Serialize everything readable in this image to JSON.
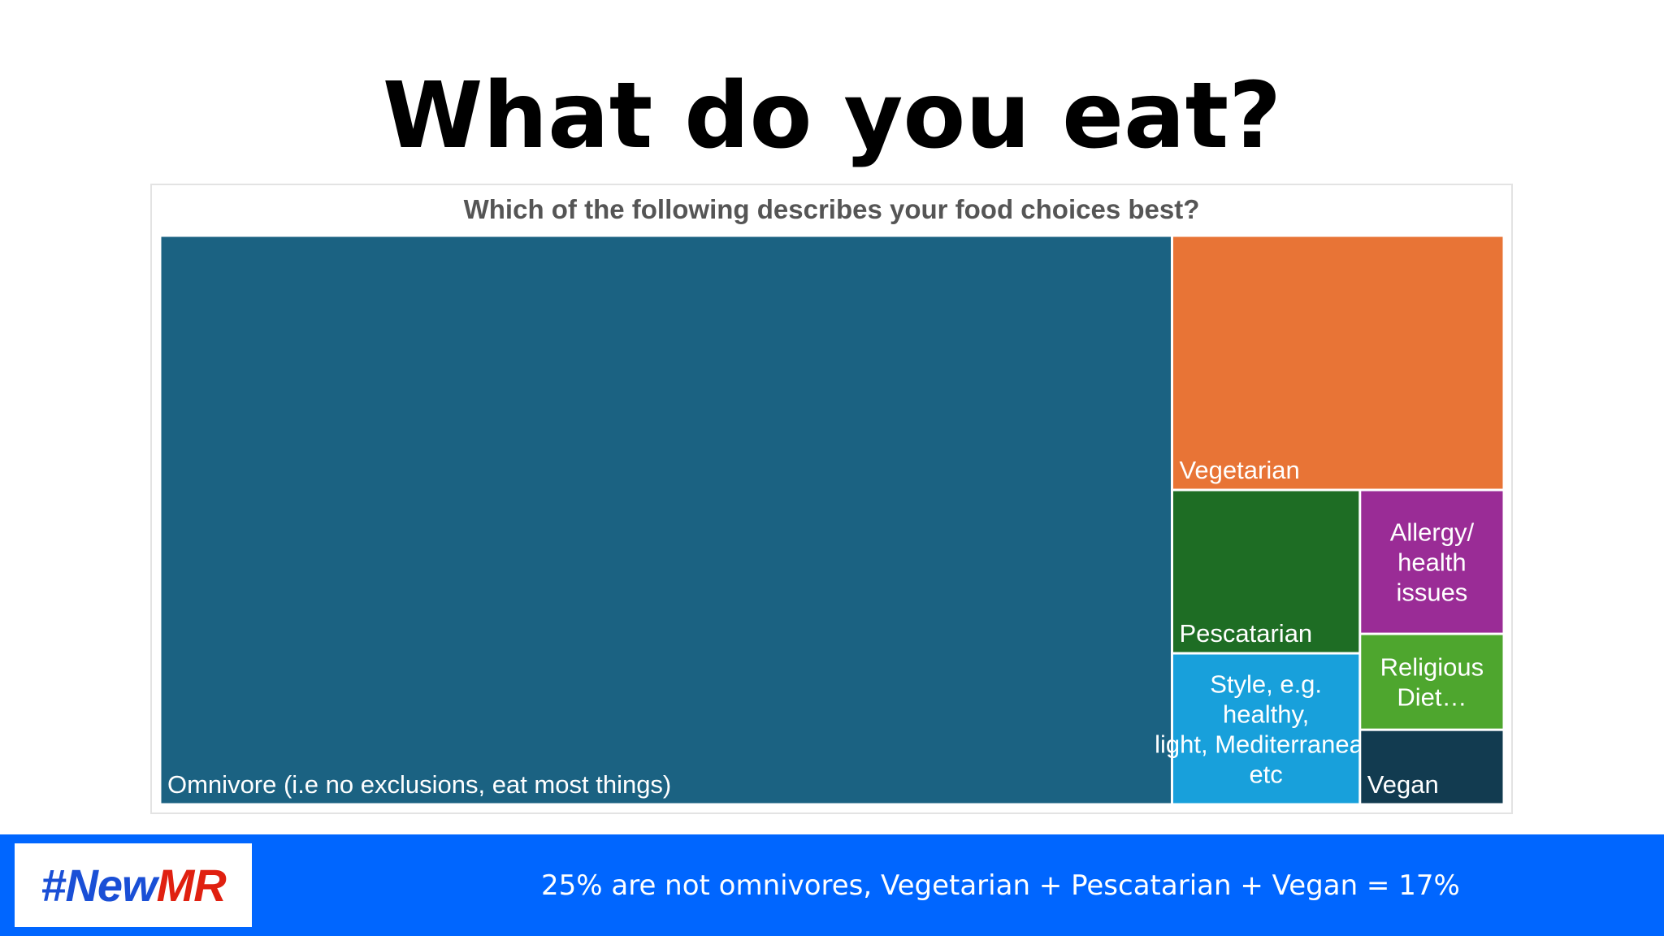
{
  "slide": {
    "title": "What do you eat?",
    "footer_caption": "25% are not omnivores, Vegetarian + Pescatarian + Vegan = 17%",
    "logo": {
      "part_a": "#New",
      "part_b": "MR"
    }
  },
  "colors": {
    "footer_bar": "#0066ff",
    "logo_blue": "#1a4fd6",
    "logo_red": "#e02010"
  },
  "chart_data": {
    "type": "treemap",
    "title": "Which of the following describes your food choices best?",
    "value_unit": "percent of respondents (estimated from tile areas)",
    "items": [
      {
        "label": "Omnivore (i.e no exclusions, eat most things)",
        "value": 75,
        "color": "#1b6282"
      },
      {
        "label": "Vegetarian",
        "value": 11,
        "color": "#e87436"
      },
      {
        "label": "Pescatarian",
        "value": 4,
        "color": "#1e6d24"
      },
      {
        "label": "Style, e.g. healthy, light, Mediterranean etc",
        "value": 3.7,
        "color": "#18a0db"
      },
      {
        "label": "Allergy/ health issues",
        "value": 2.7,
        "color": "#9a2c96"
      },
      {
        "label": "Religious Diet…",
        "value": 1.8,
        "color": "#4ea62e"
      },
      {
        "label": "Vegan",
        "value": 1.4,
        "color": "#123b50"
      }
    ]
  }
}
